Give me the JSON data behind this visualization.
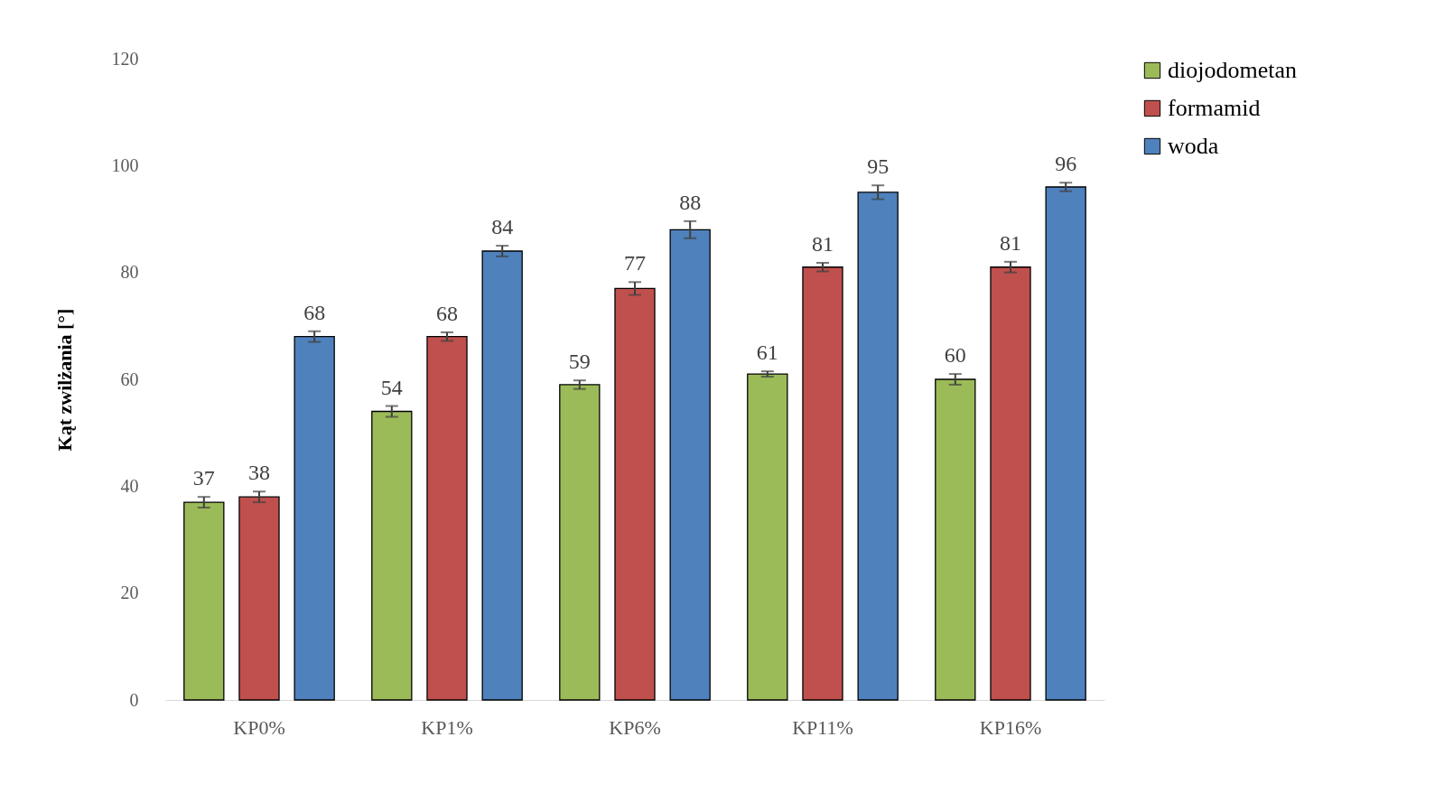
{
  "chart_data": {
    "type": "bar",
    "ylabel": "Kąt zwilżania [°]",
    "categories": [
      "KP0%",
      "KP1%",
      "KP6%",
      "KP11%",
      "KP16%"
    ],
    "series": [
      {
        "name": "diojodometan",
        "color": "#9bbb59",
        "values": [
          37,
          54,
          59,
          61,
          60
        ],
        "errors": [
          1,
          1,
          0.8,
          0.5,
          1
        ]
      },
      {
        "name": "formamid",
        "color": "#c0504d",
        "values": [
          38,
          68,
          77,
          81,
          81
        ],
        "errors": [
          1,
          0.8,
          1.2,
          0.8,
          1
        ]
      },
      {
        "name": "woda",
        "color": "#4f81bd",
        "values": [
          68,
          84,
          88,
          95,
          96
        ],
        "errors": [
          1,
          1,
          1.6,
          1.3,
          0.8
        ]
      }
    ],
    "ylim": [
      0,
      120
    ],
    "yticks": [
      0,
      20,
      40,
      60,
      80,
      100,
      120
    ],
    "grid": false,
    "legend": "right",
    "data_labels": true
  }
}
